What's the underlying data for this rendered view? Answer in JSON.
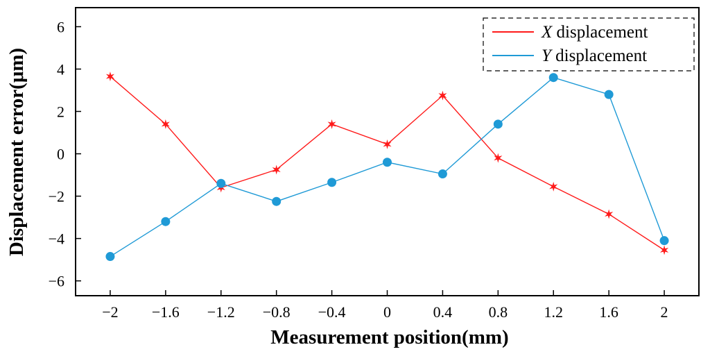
{
  "chart_data": {
    "type": "line",
    "xlabel": "Measurement position(mm)",
    "ylabel": "Displacement error(μm)",
    "xlim": [
      -2.25,
      2.25
    ],
    "ylim": [
      -6.7,
      6.9
    ],
    "xticks": [
      -2,
      -1.6,
      -1.2,
      -0.8,
      -0.4,
      0,
      0.4,
      0.8,
      1.2,
      1.6,
      2
    ],
    "xtick_labels": [
      "−2",
      "−1.6",
      "−1.2",
      "−0.8",
      "−0.4",
      "0",
      "0.4",
      "0.8",
      "1.2",
      "1.6",
      "2"
    ],
    "yticks": [
      6,
      4,
      2,
      0,
      -2,
      -4,
      -6
    ],
    "ytick_labels": [
      "6",
      "4",
      "2",
      "0",
      "−2",
      "−4",
      "−6"
    ],
    "legend_position": "top-right",
    "series": [
      {
        "name": "X displacement",
        "legend_var": "X",
        "legend_rest": " displacement",
        "color": "#ff1a1a",
        "marker": "star",
        "x": [
          -2,
          -1.6,
          -1.2,
          -0.8,
          -0.4,
          0,
          0.4,
          0.8,
          1.2,
          1.6,
          2
        ],
        "values": [
          3.65,
          1.4,
          -1.6,
          -0.75,
          1.4,
          0.45,
          2.75,
          -0.2,
          -1.55,
          -2.85,
          -4.55
        ]
      },
      {
        "name": "Y displacement",
        "legend_var": "Y",
        "legend_rest": " displacement",
        "color": "#1f9ad6",
        "marker": "circle",
        "x": [
          -2,
          -1.6,
          -1.2,
          -0.8,
          -0.4,
          0,
          0.4,
          0.8,
          1.2,
          1.6,
          2
        ],
        "values": [
          -4.85,
          -3.2,
          -1.4,
          -2.25,
          -1.35,
          -0.4,
          -0.95,
          1.4,
          3.6,
          2.8,
          -4.1
        ]
      }
    ]
  }
}
